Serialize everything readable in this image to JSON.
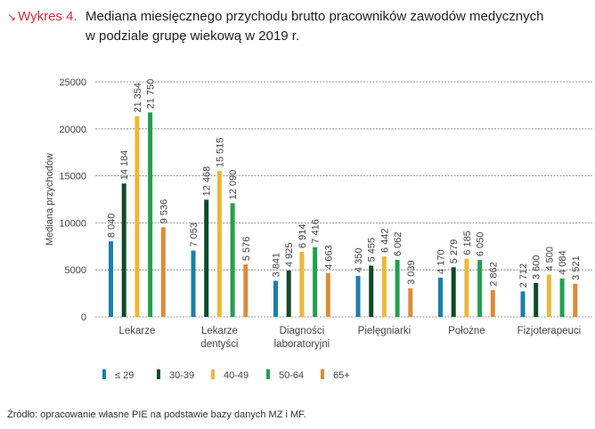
{
  "header": {
    "label": "Wykres 4.",
    "title_line1": "Mediana miesięcznego przychodu brutto pracowników zawodów medycznych",
    "title_line2": "w podziale grupę wiekową w 2019 r."
  },
  "source": "Źródło: opracowanie własne PIE na podstawie bazy danych MZ i MF.",
  "chart_data": {
    "type": "bar",
    "title": "Mediana miesięcznego przychodu brutto pracowników zawodów medycznych w podziale grupę wiekową w 2019 r.",
    "xlabel": "",
    "ylabel": "Mediana przychodów",
    "ylim": [
      0,
      25000
    ],
    "yticks": [
      0,
      5000,
      10000,
      15000,
      20000,
      25000
    ],
    "ytick_labels": [
      "0",
      "5000",
      "10000",
      "15000",
      "20000",
      "25000"
    ],
    "grid": true,
    "legend_placement": "bottom",
    "categories": [
      [
        "Lekarze"
      ],
      [
        "Lekarze",
        "dentyści"
      ],
      [
        "Diagności",
        "laboratoryjni"
      ],
      [
        "Pielęgniarki"
      ],
      [
        "Położne"
      ],
      [
        "Fizjoterapeuci"
      ]
    ],
    "series": [
      {
        "name": "≤ 29",
        "color": "#1a7fa8",
        "values": [
          8040,
          7053,
          3841,
          4350,
          4170,
          2712
        ],
        "labels": [
          "8 040",
          "7 053",
          "3 841",
          "4 350",
          "4 170",
          "2 712"
        ]
      },
      {
        "name": "30-39",
        "color": "#0f4a2a",
        "values": [
          14184,
          12468,
          4925,
          5455,
          5279,
          3600
        ],
        "labels": [
          "14 184",
          "12 468",
          "4 925",
          "5 455",
          "5 279",
          "3 600"
        ]
      },
      {
        "name": "40-49",
        "color": "#ebb93a",
        "values": [
          21354,
          15515,
          6914,
          6442,
          6185,
          4500
        ],
        "labels": [
          "21 354",
          "15 515",
          "6 914",
          "6 442",
          "6 185",
          "4 500"
        ]
      },
      {
        "name": "50-64",
        "color": "#22a04e",
        "values": [
          21750,
          12090,
          7416,
          6062,
          6050,
          4084
        ],
        "labels": [
          "21 750",
          "12 090",
          "7 416",
          "6 062",
          "6 050",
          "4 084"
        ]
      },
      {
        "name": "65+",
        "color": "#d98d3a",
        "values": [
          9536,
          5576,
          4663,
          3039,
          2862,
          3521
        ],
        "labels": [
          "9 536",
          "5 576",
          "4 663",
          "3 039",
          "2 862",
          "3 521"
        ]
      }
    ]
  }
}
